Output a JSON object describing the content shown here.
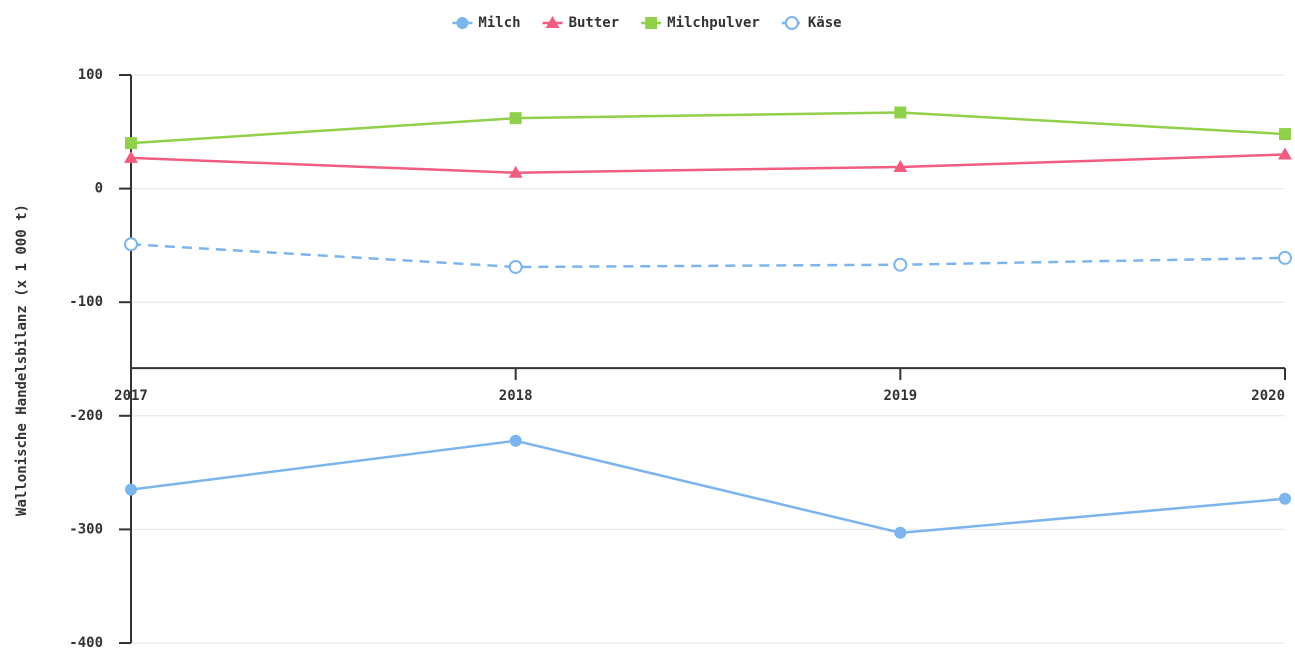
{
  "chart_data": {
    "type": "line",
    "y_label": "Wallonische Handelsbilanz (x 1 000 t)",
    "categories": [
      "2017",
      "2018",
      "2019",
      "2020"
    ],
    "series": [
      {
        "name": "Milch",
        "color": "#7cb5ec",
        "marker": "circle",
        "dash": false,
        "values": [
          -265,
          -222,
          -303,
          -273
        ]
      },
      {
        "name": "Butter",
        "color": "#f15c80",
        "marker": "triangle",
        "dash": false,
        "values": [
          27,
          14,
          19,
          30
        ]
      },
      {
        "name": "Milchpulver",
        "color": "#90d04a",
        "marker": "square",
        "dash": false,
        "values": [
          40,
          62,
          67,
          48
        ]
      },
      {
        "name": "Käse",
        "color": "#7cb5ec",
        "marker": "open-circle",
        "dash": true,
        "values": [
          -49,
          -69,
          -67,
          -61
        ]
      }
    ],
    "ylim": [
      -400,
      100
    ],
    "yticks": [
      -400,
      -300,
      -200,
      -100,
      0,
      100
    ],
    "x_axis_at": -158,
    "grid": true,
    "legend": "top"
  }
}
